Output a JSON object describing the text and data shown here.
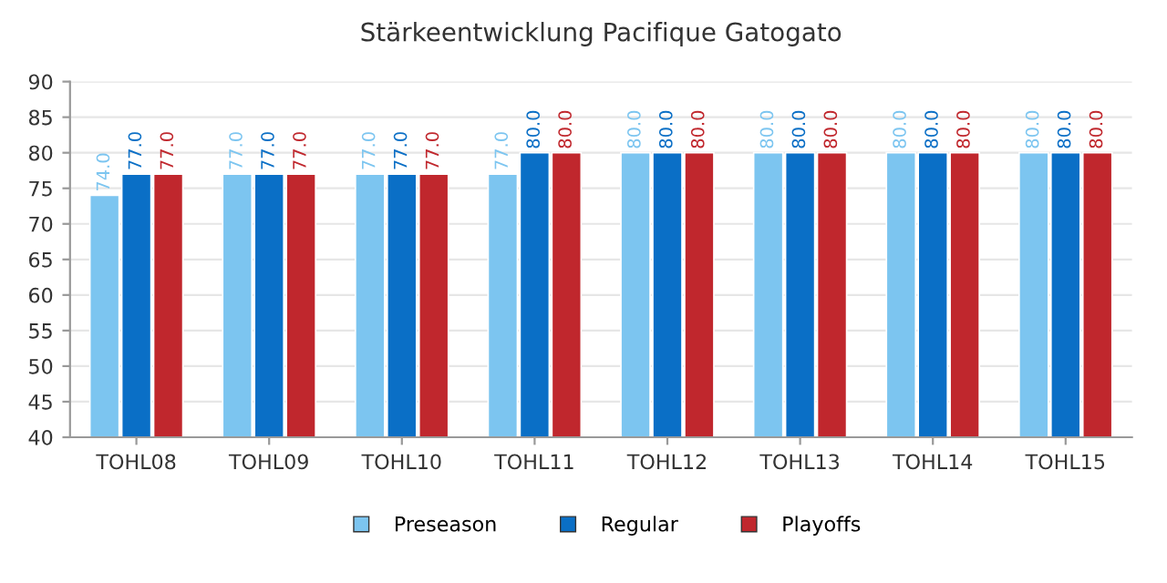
{
  "chart_data": {
    "type": "bar",
    "title": "Stärkeentwicklung Pacifique Gatogato",
    "categories": [
      "TOHL08",
      "TOHL09",
      "TOHL10",
      "TOHL11",
      "TOHL12",
      "TOHL13",
      "TOHL14",
      "TOHL15"
    ],
    "series": [
      {
        "name": "Preseason",
        "color": "#7cc5f0",
        "values": [
          74,
          77,
          77,
          77,
          80,
          80,
          80,
          80
        ],
        "value_labels": [
          "74.0",
          "77.0",
          "77.0",
          "77.0",
          "80.0",
          "80.0",
          "80.0",
          "80.0"
        ]
      },
      {
        "name": "Regular",
        "color": "#0a6fc6",
        "values": [
          77,
          77,
          77,
          80,
          80,
          80,
          80,
          80
        ],
        "value_labels": [
          "77.0",
          "77.0",
          "77.0",
          "80.0",
          "80.0",
          "80.0",
          "80.0",
          "80.0"
        ]
      },
      {
        "name": "Playoffs",
        "color": "#c0272d",
        "values": [
          77,
          77,
          77,
          80,
          80,
          80,
          80,
          80
        ],
        "value_labels": [
          "77.0",
          "77.0",
          "77.0",
          "80.0",
          "80.0",
          "80.0",
          "80.0",
          "80.0"
        ]
      }
    ],
    "ylim": [
      40,
      90
    ],
    "yticks": [
      40,
      45,
      50,
      55,
      60,
      65,
      70,
      75,
      80,
      85,
      90
    ],
    "grid": "y",
    "legend": "bottom"
  }
}
